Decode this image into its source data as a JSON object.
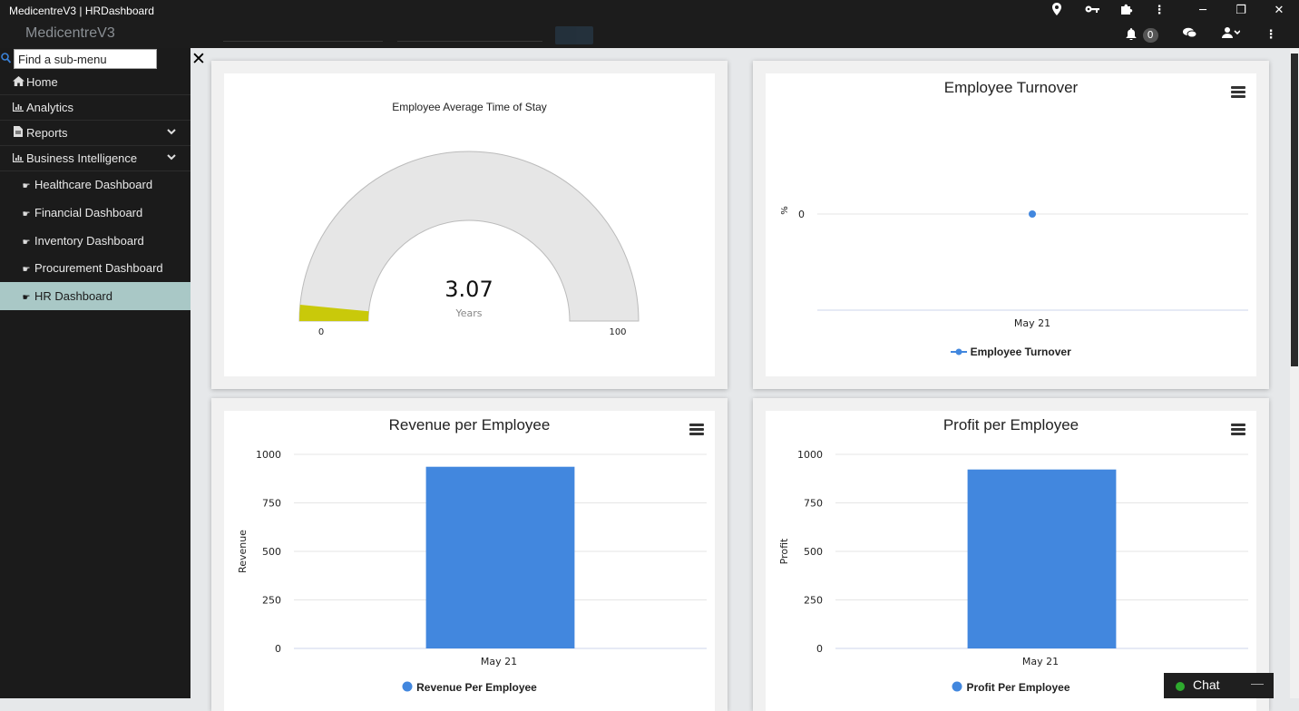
{
  "window": {
    "title": "MedicentreV3 | HRDashboard",
    "buttons": [
      "location-icon",
      "key-icon",
      "puzzle-icon",
      "more-icon",
      "minimize",
      "restore",
      "close"
    ],
    "minimize_glyph": "─",
    "restore_glyph": "❐",
    "close_glyph": "✕"
  },
  "appbar": {
    "brand": "MedicentreV3",
    "notification_count": "0"
  },
  "sidebar": {
    "search_placeholder": "Find a sub-menu",
    "items": [
      {
        "label": "Home",
        "icon": "home-icon"
      },
      {
        "label": "Analytics",
        "icon": "chart-icon"
      },
      {
        "label": "Reports",
        "icon": "file-icon"
      },
      {
        "label": "Business Intelligence",
        "icon": "chart-icon"
      }
    ],
    "sub_items": [
      {
        "label": "Healthcare Dashboard",
        "icon": "hand-pointer-icon"
      },
      {
        "label": "Financial Dashboard",
        "icon": "hand-pointer-icon"
      },
      {
        "label": "Inventory Dashboard",
        "icon": "hand-pointer-icon"
      },
      {
        "label": "Procurement Dashboard",
        "icon": "hand-pointer-icon"
      },
      {
        "label": "HR Dashboard",
        "icon": "hand-pointer-icon",
        "active": true
      }
    ]
  },
  "chat": {
    "label": "Chat",
    "status_color": "#2eaa2e"
  },
  "colors": {
    "accent": "#4287de",
    "gauge_fill": "#c9c90a",
    "gauge_bg": "#e6e6e6",
    "active_nav": "#a9c8c6"
  },
  "chart_data": [
    {
      "type": "gauge",
      "title": "Employee Average Time of Stay",
      "value": 3.07,
      "value_label": "3.07",
      "unit": "Years",
      "min": 0,
      "max": 100,
      "min_label": "0",
      "max_label": "100"
    },
    {
      "type": "line",
      "title": "Employee Turnover",
      "categories": [
        "May 21"
      ],
      "series": [
        {
          "name": "Employee Turnover",
          "values": [
            0
          ]
        }
      ],
      "ylabel": "%",
      "yticks": [
        "0"
      ]
    },
    {
      "type": "bar",
      "title": "Revenue per Employee",
      "categories": [
        "May 21"
      ],
      "series": [
        {
          "name": "Revenue Per Employee",
          "values": [
            936
          ]
        }
      ],
      "ylabel": "Revenue",
      "ylim": [
        0,
        1000
      ],
      "yticks": [
        "0",
        "250",
        "500",
        "750",
        "1000"
      ]
    },
    {
      "type": "bar",
      "title": "Profit per Employee",
      "categories": [
        "May 21"
      ],
      "series": [
        {
          "name": "Profit Per Employee",
          "values": [
            922
          ]
        }
      ],
      "ylabel": "Profit",
      "ylim": [
        0,
        1000
      ],
      "yticks": [
        "0",
        "250",
        "500",
        "750",
        "1000"
      ]
    }
  ]
}
